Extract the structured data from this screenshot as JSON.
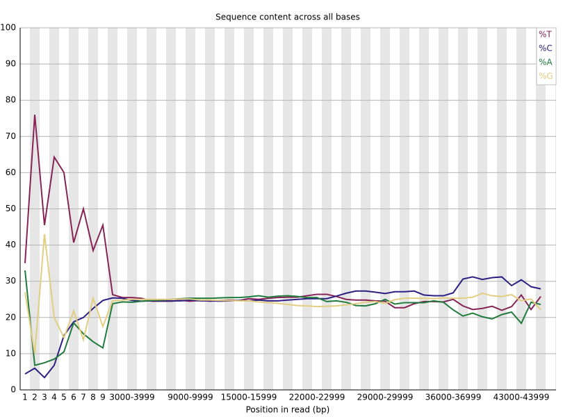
{
  "chart_data": {
    "type": "line",
    "title": "Sequence content across all bases",
    "x_label": "Position in read (bp)",
    "categories": [
      "1",
      "2",
      "3",
      "4",
      "5",
      "6",
      "7",
      "8",
      "9",
      null,
      null,
      "3000-3999",
      null,
      null,
      null,
      null,
      null,
      "9000-9999",
      null,
      null,
      null,
      null,
      null,
      "15000-15999",
      null,
      null,
      null,
      null,
      null,
      null,
      "22000-22999",
      null,
      null,
      null,
      null,
      null,
      null,
      "29000-29999",
      null,
      null,
      null,
      null,
      null,
      null,
      "36000-36999",
      null,
      null,
      null,
      null,
      null,
      null,
      "43000-43999",
      null,
      null
    ],
    "ylim": [
      0,
      100
    ],
    "yticks": [
      0,
      10,
      20,
      30,
      40,
      50,
      60,
      70,
      80,
      90,
      100
    ],
    "grid": true,
    "legend": "top-right",
    "series": [
      {
        "name": "%T",
        "color": "#862356",
        "values": [
          35,
          76,
          45.5,
          64.3,
          60,
          40.7,
          50,
          38.5,
          45.5,
          26.3,
          25.5,
          25.5,
          25.3,
          24.5,
          24.5,
          24.5,
          24.7,
          24.5,
          24.7,
          24.5,
          24.7,
          24.8,
          24.7,
          25.2,
          25,
          25.3,
          25.5,
          25.6,
          25.6,
          26,
          26.4,
          26.4,
          25.8,
          25,
          24.8,
          24.8,
          24.6,
          24.5,
          22.7,
          22.7,
          23.8,
          24.4,
          24.4,
          24.3,
          25,
          23.2,
          22.2,
          22.5,
          23.1,
          22,
          23,
          26.2,
          22.2,
          25.8
        ]
      },
      {
        "name": "%C",
        "color": "#2b1f83",
        "values": [
          4.4,
          6,
          3.4,
          6.8,
          15,
          18.8,
          20,
          22.5,
          24.7,
          25.4,
          25.3,
          24.7,
          24.5,
          24.6,
          24.6,
          24.6,
          24.6,
          24.8,
          24.6,
          24.6,
          24.5,
          24.6,
          24.7,
          24.6,
          24.8,
          24.6,
          24.6,
          24.8,
          25,
          25.2,
          25.2,
          25.2,
          25.9,
          26.7,
          27.3,
          27.3,
          27,
          26.6,
          27.1,
          27.1,
          27.3,
          26.2,
          26,
          26,
          26.8,
          30.6,
          31.2,
          30.5,
          31,
          31.2,
          28.8,
          30.4,
          28.5,
          27.9
        ]
      },
      {
        "name": "%A",
        "color": "#1f7a3c",
        "values": [
          33,
          6.8,
          7.5,
          8.5,
          10.5,
          18.5,
          15.5,
          13.3,
          11.6,
          23.8,
          24.3,
          24.2,
          24.5,
          24.7,
          24.8,
          25,
          25.2,
          25.3,
          25.3,
          25.3,
          25.4,
          25.5,
          25.5,
          25.7,
          26,
          25.6,
          25.9,
          26,
          25.8,
          25.5,
          25.5,
          24.4,
          24.6,
          24.2,
          23.3,
          23.2,
          23.8,
          25,
          23.7,
          24.1,
          24.1,
          24.1,
          24.6,
          24.2,
          22.1,
          20.4,
          21.2,
          20.2,
          19.6,
          20.8,
          21.5,
          18.4,
          24.2,
          23.6
        ]
      },
      {
        "name": "%G",
        "color": "#e2cd80",
        "values": [
          27,
          10,
          43,
          20,
          14.4,
          21.8,
          13.8,
          25.3,
          17.5,
          24.6,
          24.8,
          25,
          25,
          25,
          25,
          25,
          25.1,
          25.1,
          24.8,
          24.8,
          24.7,
          24.7,
          24.6,
          24.6,
          24.3,
          24.1,
          23.9,
          23.6,
          23.3,
          23.2,
          23,
          23.1,
          23.2,
          23.5,
          23.8,
          24.2,
          24.4,
          23.9,
          24.9,
          25.3,
          25.3,
          25.3,
          25.2,
          25.4,
          25.3,
          25.3,
          25.6,
          26.7,
          26,
          25.8,
          26.3,
          24.6,
          25.1,
          22.1
        ]
      }
    ]
  }
}
